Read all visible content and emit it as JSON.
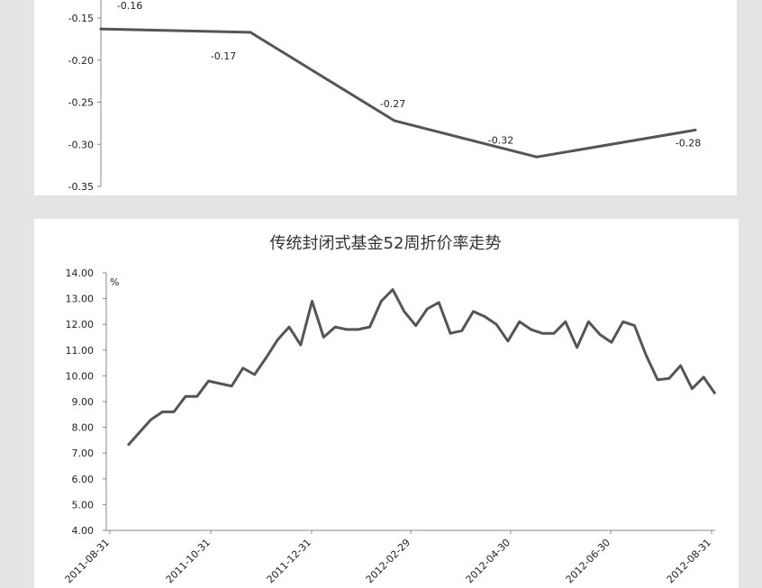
{
  "chart_data": [
    {
      "type": "line",
      "title": "",
      "ylim": [
        -0.35,
        -0.15
      ],
      "y_ticks": [
        "-0.15",
        "-0.20",
        "-0.25",
        "-0.30",
        "-0.35"
      ],
      "grid": false,
      "values": [
        -0.163,
        -0.167,
        -0.272,
        -0.315,
        -0.283
      ],
      "data_labels": [
        "-0.16",
        "-0.17",
        "-0.27",
        "-0.32",
        "-0.28"
      ],
      "color": "#555555"
    },
    {
      "type": "line",
      "title": "传统封闭式基金52周折价率走势",
      "unit": "%",
      "ylim": [
        4.0,
        14.0
      ],
      "y_ticks": [
        "14.00",
        "13.00",
        "12.00",
        "11.00",
        "10.00",
        "9.00",
        "8.00",
        "7.00",
        "6.00",
        "5.00",
        "4.00"
      ],
      "x_tick_labels": [
        "2011-08-31",
        "2011-10-31",
        "2011-12-31",
        "2012-02-29",
        "2012-04-30",
        "2012-06-30",
        "2012-08-31"
      ],
      "grid": false,
      "values": [
        7.3,
        7.8,
        8.3,
        8.6,
        8.6,
        9.2,
        9.2,
        9.8,
        9.7,
        9.6,
        10.3,
        10.05,
        10.7,
        11.4,
        11.9,
        11.2,
        12.9,
        11.5,
        11.9,
        11.8,
        11.8,
        11.9,
        12.9,
        13.35,
        12.5,
        11.95,
        12.6,
        12.85,
        11.65,
        11.75,
        12.5,
        12.3,
        12.0,
        11.35,
        12.1,
        11.8,
        11.65,
        11.65,
        12.1,
        11.1,
        12.1,
        11.6,
        11.3,
        12.1,
        11.95,
        10.8,
        9.85,
        9.9,
        10.4,
        9.5,
        9.95,
        9.3
      ],
      "color": "#555555"
    }
  ]
}
